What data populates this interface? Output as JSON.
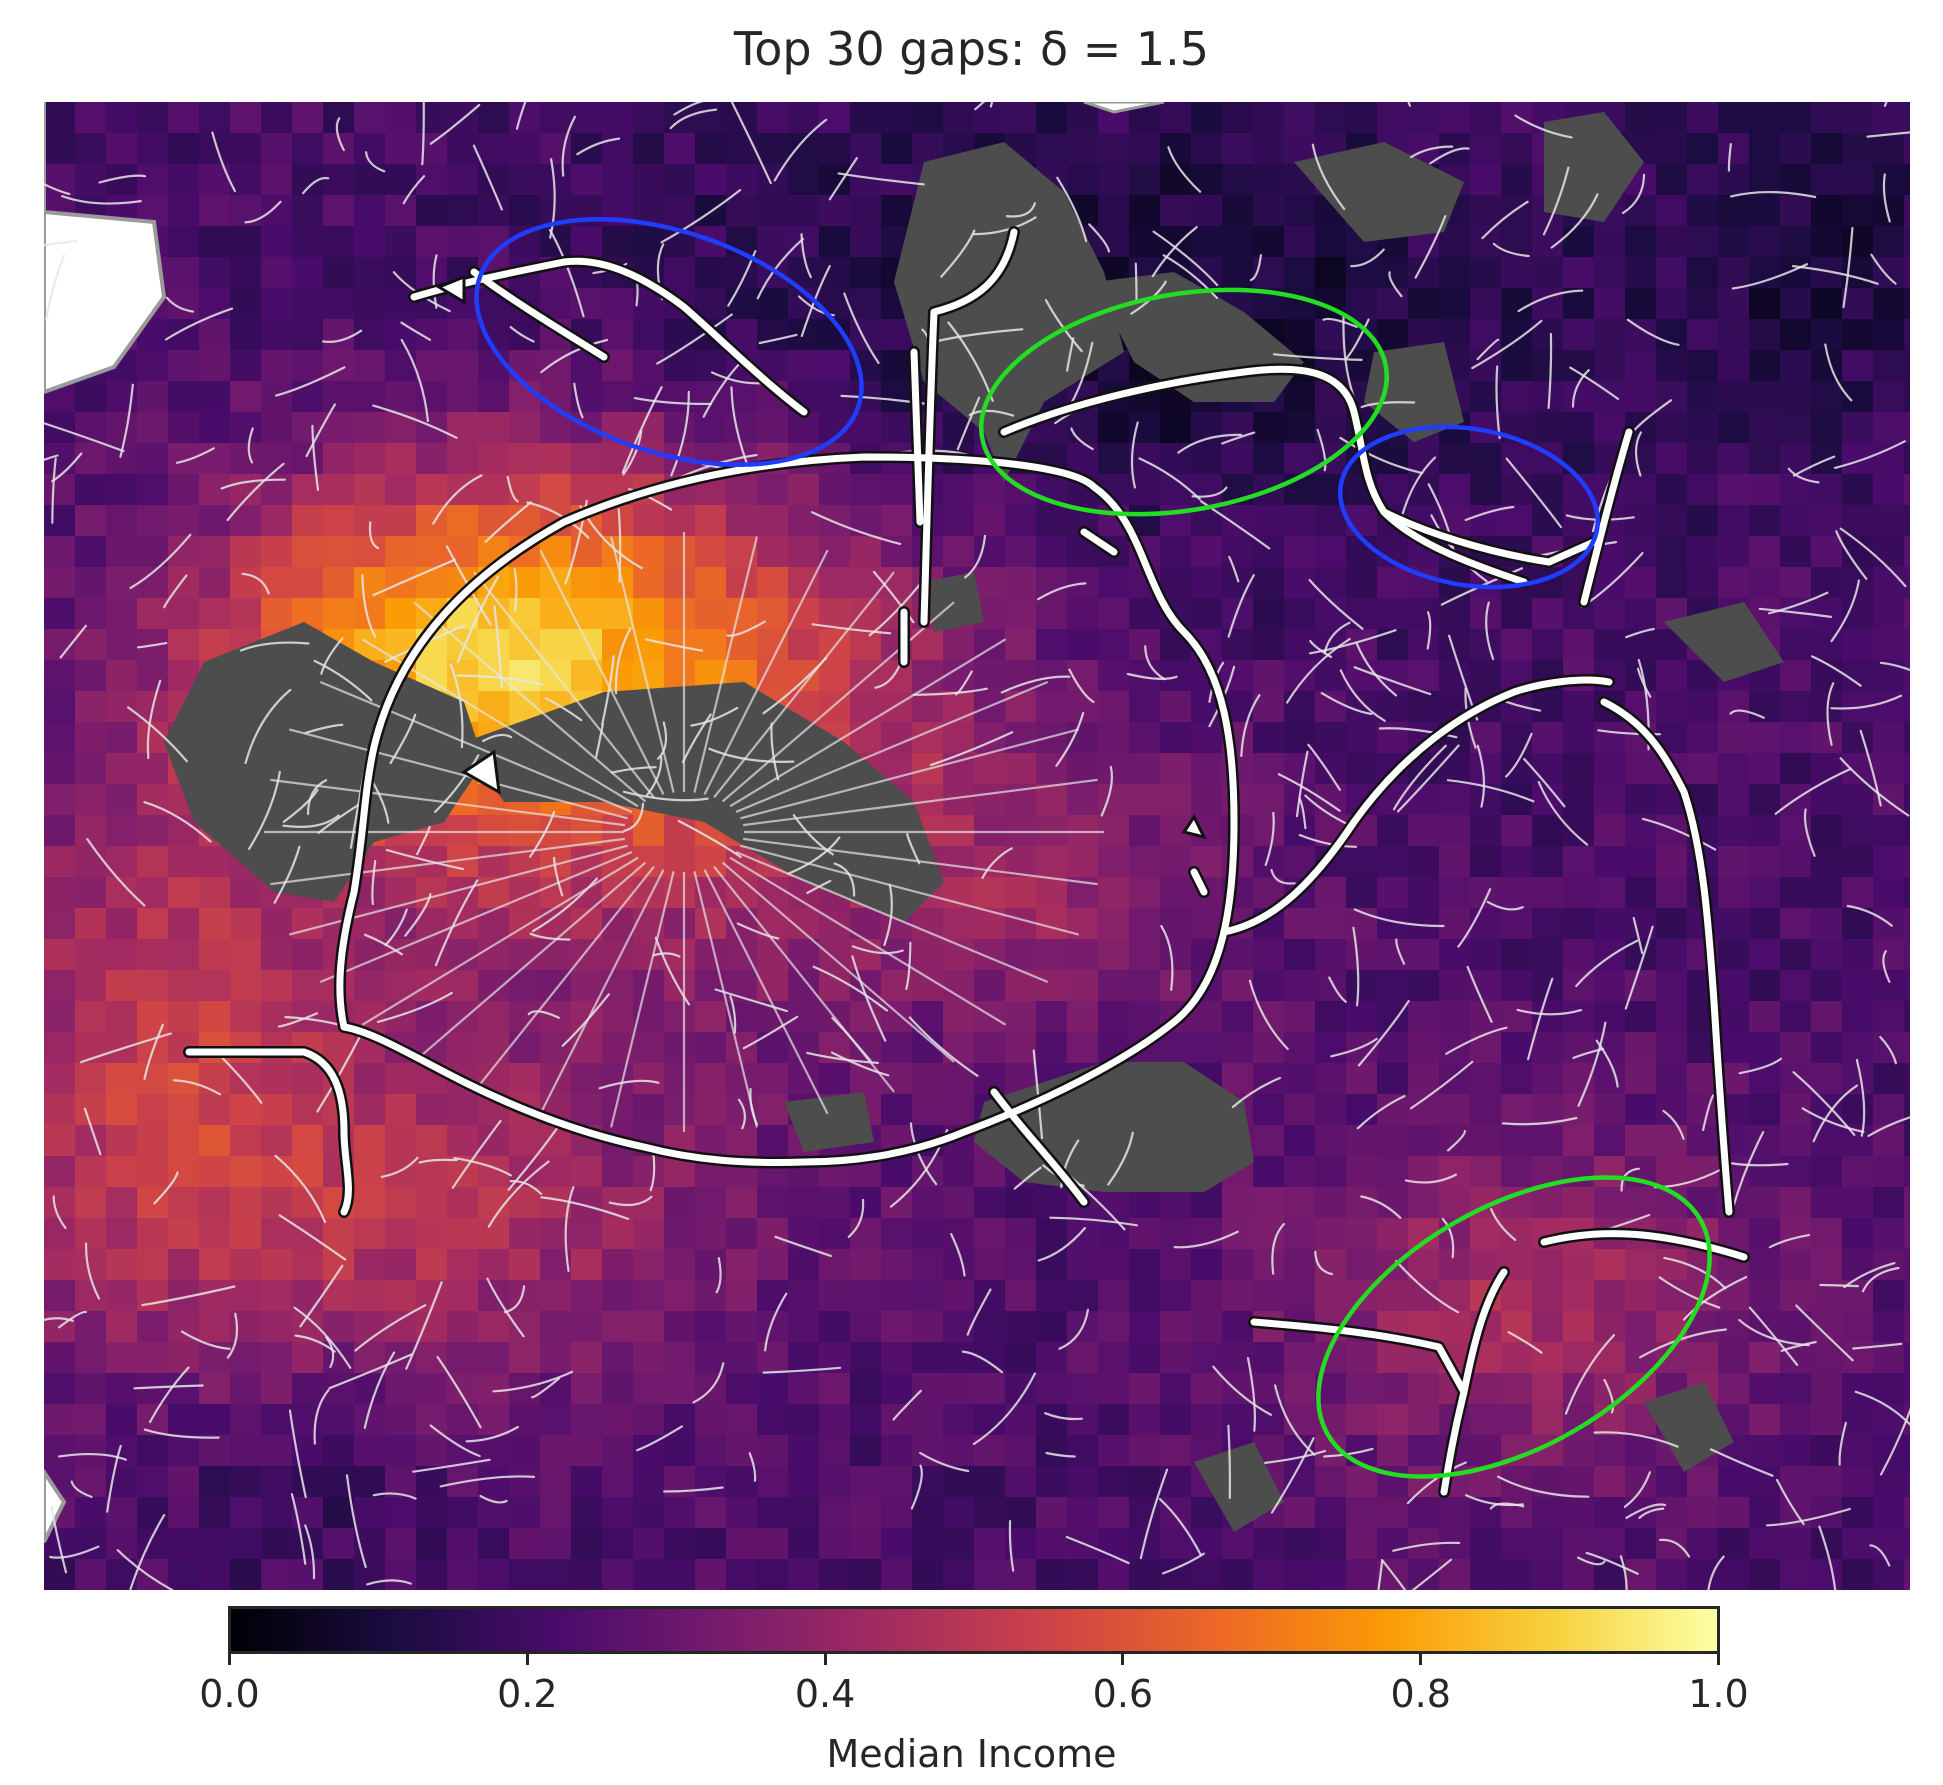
{
  "title": "Top 30 gaps: δ = 1.5",
  "colormap": "inferno",
  "colorbar": {
    "label": "Median Income",
    "ticks": [
      "0.0",
      "0.2",
      "0.4",
      "0.6",
      "0.8",
      "1.0"
    ],
    "range": [
      0.0,
      1.0
    ],
    "stops": [
      "#000004",
      "#1b0c41",
      "#4a0c6b",
      "#781c6d",
      "#a52c60",
      "#cf4446",
      "#ed6925",
      "#fb9b06",
      "#f7d13d",
      "#fcffa4"
    ]
  },
  "colors": {
    "no_data": "#4d4d4d",
    "streets": "#e6e6e6",
    "gap_routes": "#ffffff",
    "highlight_blue": "#1f3dff",
    "highlight_green": "#22dd22"
  },
  "highlights": [
    {
      "color": "blue",
      "region": "north-west"
    },
    {
      "color": "green",
      "region": "north"
    },
    {
      "color": "blue",
      "region": "north-east"
    },
    {
      "color": "green",
      "region": "south-east"
    }
  ]
}
